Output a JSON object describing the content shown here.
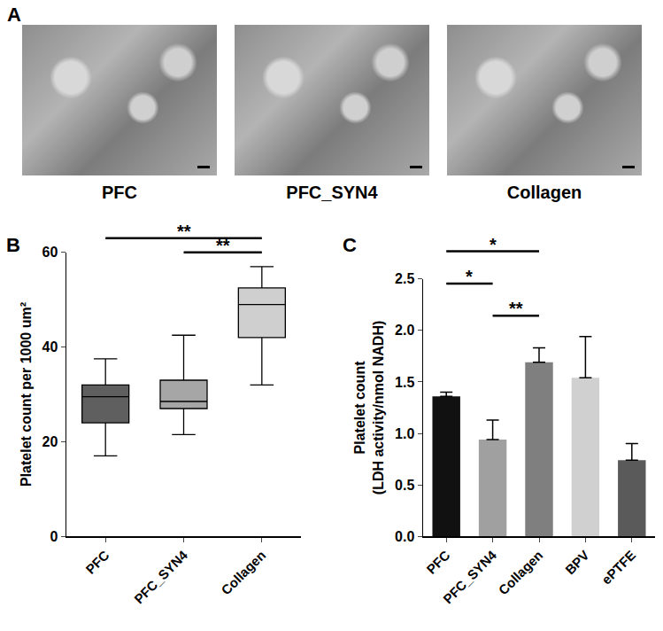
{
  "panel_a": {
    "label": "A",
    "images": [
      "PFC",
      "PFC_SYN4",
      "Collagen"
    ]
  },
  "chart_data": [
    {
      "type": "box",
      "panel": "B",
      "categories": [
        "PFC",
        "PFC_SYN4",
        "Collagen"
      ],
      "boxes": [
        {
          "min": 17,
          "q1": 24,
          "median": 29.5,
          "q3": 32,
          "max": 37.5
        },
        {
          "min": 21.5,
          "q1": 27,
          "median": 28.5,
          "q3": 33,
          "max": 42.5
        },
        {
          "min": 32,
          "q1": 42,
          "median": 49,
          "q3": 52.5,
          "max": 57
        }
      ],
      "colors": [
        "#5f5f5f",
        "#a6a6a6",
        "#cfcfcf"
      ],
      "y_label": "Platelet count per 1000 um²",
      "ylim": [
        0,
        60
      ],
      "yticks": [
        0,
        20,
        40,
        60
      ],
      "grid": false,
      "comparisons": [
        {
          "from": "PFC",
          "to": "Collagen",
          "label": "**"
        },
        {
          "from": "PFC_SYN4",
          "to": "Collagen",
          "label": "**"
        }
      ]
    },
    {
      "type": "bar",
      "panel": "C",
      "categories": [
        "PFC",
        "PFC_SYN4",
        "Collagen",
        "BPV",
        "ePTFE"
      ],
      "values": [
        1.36,
        0.94,
        1.69,
        1.54,
        0.74
      ],
      "errors": [
        0.04,
        0.19,
        0.14,
        0.4,
        0.16
      ],
      "colors": [
        "#111111",
        "#a0a0a0",
        "#7f7f7f",
        "#d0d0d0",
        "#5a5a5a"
      ],
      "y_label": "Platelet count (LDH activity/nmol NADH)",
      "ylim": [
        0,
        2.5
      ],
      "yticks": [
        {
          "value": 0,
          "label": "0.0"
        },
        0.5,
        {
          "value": 1,
          "label": "1.0"
        },
        1.5,
        {
          "value": 2,
          "label": "2.0"
        },
        2.5
      ],
      "grid": false,
      "comparisons": [
        {
          "from": "PFC",
          "to": "Collagen",
          "label": "*"
        },
        {
          "from": "PFC_SYN4",
          "to": "Collagen",
          "label": "**"
        },
        {
          "from": "PFC",
          "to": "PFC_SYN4",
          "label": "*"
        }
      ]
    }
  ]
}
